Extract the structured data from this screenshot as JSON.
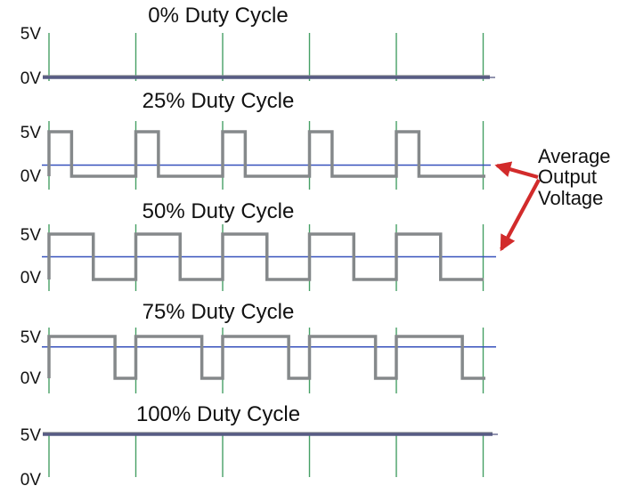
{
  "annotation": {
    "text": "Average Output Voltage",
    "lines": [
      "Average",
      "Output",
      "Voltage"
    ]
  },
  "colors": {
    "background": "#ffffff",
    "text": "#111111",
    "tick_green": "#46a065",
    "waveform_gray": "#85898b",
    "average_blue": "#3751bc",
    "flat_line_slate": "#575b84",
    "arrow_red": "#d22b2b"
  },
  "chart_data": {
    "type": "line",
    "description": "Five PWM square-wave timing diagrams showing how duty cycle sets average output voltage",
    "x_axis": {
      "label": "",
      "periods_shown": 5,
      "timebase_ticks": 6
    },
    "y_axis": {
      "high_label": "5V",
      "low_label": "0V",
      "high_voltage_v": 5,
      "low_voltage_v": 0
    },
    "legend_position": "right",
    "grid": "vertical-ticks-only",
    "panels": [
      {
        "title": "0% Duty Cycle",
        "duty_cycle_percent": 0,
        "high_voltage_v": 5,
        "low_voltage_v": 0,
        "average_output_voltage_v": 0,
        "y_axis_ticks": [
          "5V",
          "0V"
        ]
      },
      {
        "title": "25% Duty Cycle",
        "duty_cycle_percent": 25,
        "high_voltage_v": 5,
        "low_voltage_v": 0,
        "average_output_voltage_v": 1.25,
        "y_axis_ticks": [
          "5V",
          "0V"
        ]
      },
      {
        "title": "50% Duty Cycle",
        "duty_cycle_percent": 50,
        "high_voltage_v": 5,
        "low_voltage_v": 0,
        "average_output_voltage_v": 2.5,
        "y_axis_ticks": [
          "5V",
          "0V"
        ]
      },
      {
        "title": "75% Duty Cycle",
        "duty_cycle_percent": 75,
        "high_voltage_v": 5,
        "low_voltage_v": 0,
        "average_output_voltage_v": 3.75,
        "y_axis_ticks": [
          "5V",
          "0V"
        ]
      },
      {
        "title": "100% Duty Cycle",
        "duty_cycle_percent": 100,
        "high_voltage_v": 5,
        "low_voltage_v": 0,
        "average_output_voltage_v": 5,
        "y_axis_ticks": [
          "5V",
          "0V"
        ]
      }
    ],
    "annotation": "Average Output Voltage"
  }
}
